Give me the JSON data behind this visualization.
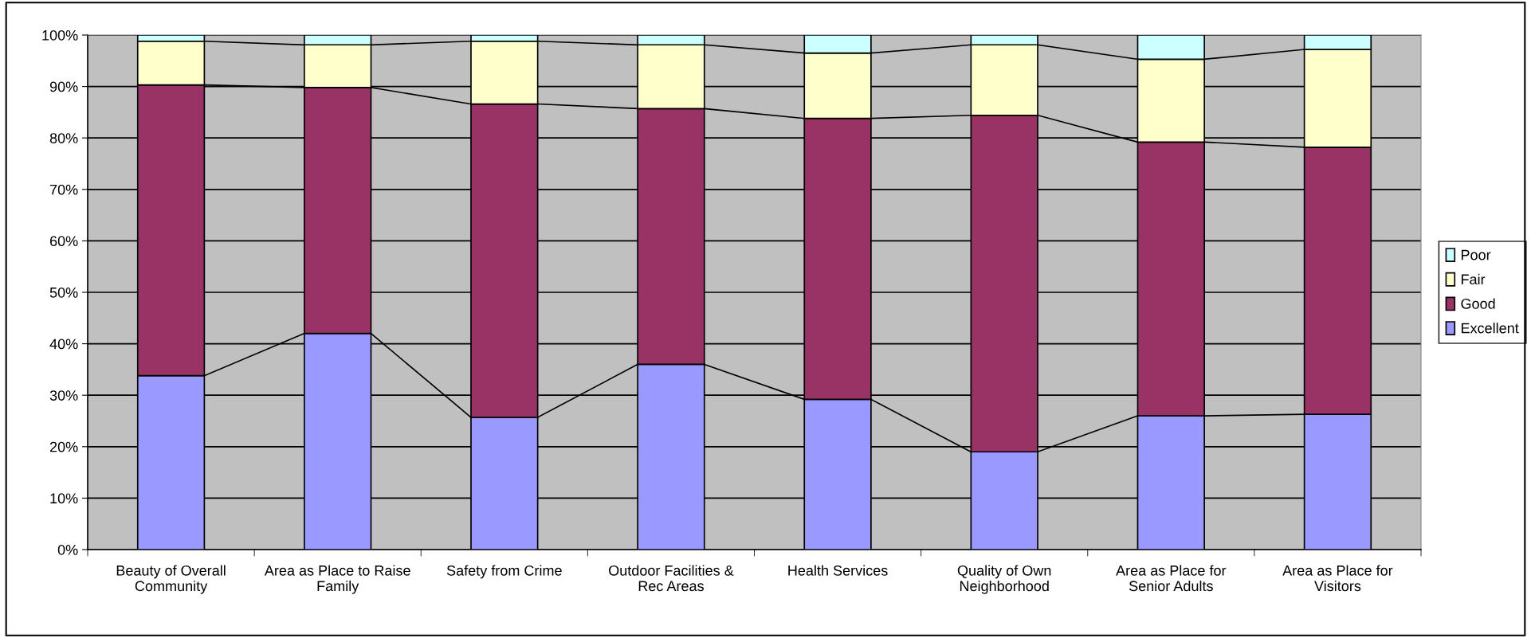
{
  "chart_data": {
    "type": "bar",
    "stacked": true,
    "categories": [
      "Beauty of Overall\nCommunity",
      "Area as Place to Raise\nFamily",
      "Safety from Crime",
      "Outdoor Facilities &\nRec Areas",
      "Health Services",
      "Quality of Own\nNeighborhood",
      "Area as Place for\nSenior Adults",
      "Area as Place for\nVisitors"
    ],
    "series": [
      {
        "name": "Excellent",
        "color": "#9999ff",
        "values": [
          33.8,
          42.0,
          25.7,
          36.0,
          29.2,
          19.0,
          26.0,
          26.3
        ]
      },
      {
        "name": "Good",
        "color": "#993366",
        "values": [
          56.5,
          47.8,
          60.9,
          49.7,
          54.6,
          65.4,
          53.2,
          51.9
        ]
      },
      {
        "name": "Fair",
        "color": "#ffffcc",
        "values": [
          8.5,
          8.3,
          12.2,
          12.4,
          12.7,
          13.7,
          16.1,
          19.0
        ]
      },
      {
        "name": "Poor",
        "color": "#ccffff",
        "values": [
          1.2,
          1.9,
          1.2,
          1.9,
          3.5,
          1.9,
          4.7,
          2.8
        ]
      }
    ],
    "ylim": [
      0,
      100
    ],
    "yticks": [
      {
        "value": 0,
        "label": "0%"
      },
      {
        "value": 10,
        "label": "10%"
      },
      {
        "value": 20,
        "label": "20%"
      },
      {
        "value": 30,
        "label": "30%"
      },
      {
        "value": 40,
        "label": "40%"
      },
      {
        "value": 50,
        "label": "50%"
      },
      {
        "value": 60,
        "label": "60%"
      },
      {
        "value": 70,
        "label": "70%"
      },
      {
        "value": 80,
        "label": "80%"
      },
      {
        "value": 90,
        "label": "90%"
      },
      {
        "value": 100,
        "label": "100%"
      }
    ],
    "grid": "y",
    "legend": "right"
  }
}
